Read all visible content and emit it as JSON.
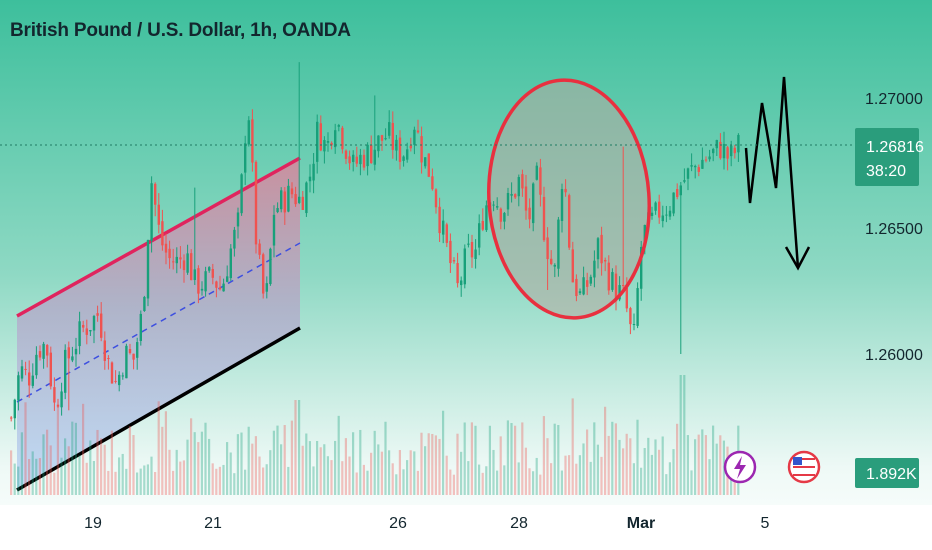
{
  "chart_data": {
    "type": "candlestick",
    "title": "British Pound / U.S. Dollar, 1h, OANDA",
    "symbol": "GBPUSD",
    "interval": "1h",
    "source": "OANDA",
    "x_ticks": [
      "19",
      "21",
      "26",
      "28",
      "Mar",
      "5"
    ],
    "y_ticks": [
      "1.27000",
      "1.26500",
      "1.26000"
    ],
    "ylim": [
      1.2565,
      1.2725
    ],
    "last_price": "1.26816",
    "countdown": "38:20",
    "volume_label": "1.892K",
    "series_path": [
      [
        1.2575,
        1.258
      ],
      [
        1.2594,
        1.2598
      ],
      [
        1.2591,
        1.2598
      ],
      [
        1.2602,
        1.2598
      ],
      [
        1.2604,
        1.2599
      ],
      [
        1.2578,
        1.26
      ],
      [
        1.2595,
        1.26
      ],
      [
        1.2602,
        1.2605
      ],
      [
        1.2609,
        1.2606
      ],
      [
        1.2612,
        1.2608
      ],
      [
        1.2616,
        1.261
      ],
      [
        1.2597,
        1.2611
      ],
      [
        1.2588,
        1.261
      ],
      [
        1.26,
        1.2613
      ],
      [
        1.2598,
        1.2613
      ],
      [
        1.2617,
        1.2626
      ],
      [
        1.2668,
        1.2659
      ],
      [
        1.2645,
        1.2646
      ],
      [
        1.2637,
        1.2643
      ],
      [
        1.2636,
        1.2645
      ],
      [
        1.2639,
        1.2656
      ],
      [
        1.2627,
        1.2649
      ],
      [
        1.2628,
        1.2651
      ],
      [
        1.263,
        1.2651
      ],
      [
        1.2625,
        1.2652
      ],
      [
        1.264,
        1.2655
      ],
      [
        1.2652,
        1.2657
      ],
      [
        1.2701,
        1.2671
      ],
      [
        1.2642,
        1.2674
      ],
      [
        1.2617,
        1.2676
      ],
      [
        1.2656,
        1.2674
      ],
      [
        1.266,
        1.2676
      ],
      [
        1.2663,
        1.2678
      ],
      [
        1.266,
        1.2681
      ],
      [
        1.2668,
        1.2681
      ],
      [
        1.2688,
        1.2685
      ],
      [
        1.268,
        1.2685
      ],
      [
        1.2693,
        1.2687
      ],
      [
        1.2683,
        1.2685
      ],
      [
        1.2673,
        1.2685
      ],
      [
        1.2677,
        1.2685
      ],
      [
        1.2679,
        1.2685
      ],
      [
        1.2683,
        1.2685
      ],
      [
        1.2686,
        1.2687
      ],
      [
        1.2679,
        1.2687
      ],
      [
        1.2679,
        1.2688
      ],
      [
        1.2691,
        1.2685
      ],
      [
        1.2677,
        1.2681
      ],
      [
        1.2669,
        1.2674
      ],
      [
        1.2651,
        1.2669
      ],
      [
        1.2637,
        1.2665
      ],
      [
        1.2625,
        1.266
      ],
      [
        1.2639,
        1.2655
      ],
      [
        1.264,
        1.2652
      ],
      [
        1.2657,
        1.2649
      ],
      [
        1.2663,
        1.2645
      ],
      [
        1.2656,
        1.2642
      ],
      [
        1.266,
        1.264
      ],
      [
        1.2668,
        1.2637
      ],
      [
        1.2651,
        1.2634
      ],
      [
        1.2668,
        1.2633
      ],
      [
        1.2645,
        1.2635
      ],
      [
        1.263,
        1.2637
      ],
      [
        1.2675,
        1.2639
      ],
      [
        1.263,
        1.264
      ],
      [
        1.2622,
        1.2642
      ],
      [
        1.2629,
        1.2644
      ],
      [
        1.2642,
        1.2645
      ],
      [
        1.2632,
        1.2647
      ],
      [
        1.2625,
        1.2649
      ],
      [
        1.2622,
        1.2651
      ],
      [
        1.2603,
        1.2653
      ],
      [
        1.2646,
        1.2654
      ],
      [
        1.2651,
        1.2656
      ],
      [
        1.2656,
        1.2657
      ],
      [
        1.2658,
        1.2659
      ],
      [
        1.2664,
        1.2661
      ],
      [
        1.2669,
        1.2663
      ],
      [
        1.2673,
        1.2665
      ],
      [
        1.2676,
        1.2666
      ],
      [
        1.2678,
        1.2668
      ],
      [
        1.2681,
        1.267
      ],
      [
        1.2676,
        1.2671
      ],
      [
        1.2681,
        1.2673
      ]
    ],
    "volume_note": "hourly volume histogram along the bottom of the chart",
    "annotations": [
      {
        "type": "rising-channel",
        "upper_color": "#e0245e",
        "lower_color": "#000000",
        "mid_style": "dashed",
        "mid_color": "#3d4fe0"
      },
      {
        "type": "ellipse",
        "color": "#e8303f"
      },
      {
        "type": "forecast-path",
        "color": "#000000",
        "direction": "down"
      }
    ]
  },
  "colors": {
    "bg_top": "#3dbf9c",
    "bg_bottom": "#ffffff",
    "up": "#18a07a",
    "down": "#ef5350",
    "badge": "#2a9d7c",
    "axis_text": "#13262e"
  },
  "icons": {
    "flash": "lightning-icon",
    "flag": "us-flag-icon"
  }
}
